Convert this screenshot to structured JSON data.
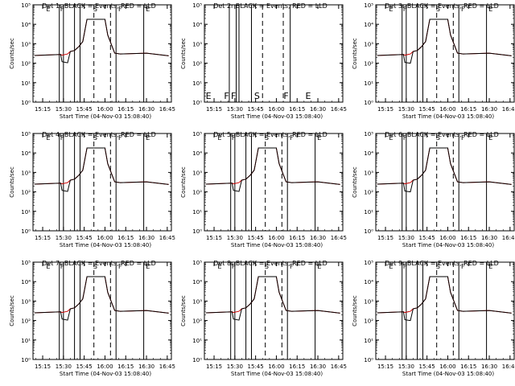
{
  "figure": {
    "colors": {
      "events": "#000000",
      "lld": "#cc0000",
      "background": "#ffffff"
    },
    "xlabel": "Start Time (04-Nov-03 15:08:40)",
    "ylabel": "Counts/sec",
    "x_ticks": [
      "15:15",
      "15:30",
      "15:45",
      "16:00",
      "16:15",
      "16:30",
      "16:45"
    ],
    "y_ticks": [
      "10⁰",
      "10¹",
      "10²",
      "10³",
      "10⁴",
      "10⁵"
    ]
  },
  "chart_data": [
    {
      "type": "line",
      "title": "Det 1r BLACK = Events, RED = LLD",
      "xlabel": "Start Time (04-Nov-03 15:08:40)",
      "ylabel": "Counts/sec",
      "xlim": [
        "15:08",
        "16:48"
      ],
      "ylim": [
        1,
        100000
      ],
      "yscale": "log",
      "series": [
        {
          "name": "Events",
          "color": "#000000",
          "x": [
            "15:09",
            "15:28",
            "15:29",
            "15:33",
            "15:35",
            "15:38",
            "15:41",
            "15:44",
            "15:47",
            "16:00",
            "16:02",
            "16:07",
            "16:11",
            "16:30",
            "16:46"
          ],
          "y": [
            250,
            280,
            120,
            105,
            400,
            450,
            700,
            1300,
            18000,
            18000,
            2800,
            330,
            300,
            330,
            240
          ]
        },
        {
          "name": "LLD",
          "color": "#cc0000",
          "x": [
            "15:09",
            "15:28",
            "15:29",
            "15:33",
            "15:35",
            "15:38",
            "15:41",
            "15:44",
            "15:47",
            "16:00",
            "16:02",
            "16:07",
            "16:11",
            "16:30",
            "16:46"
          ],
          "y": [
            250,
            280,
            260,
            300,
            400,
            450,
            700,
            1300,
            18000,
            18000,
            2800,
            330,
            300,
            330,
            240
          ]
        }
      ],
      "vlines_solid": [
        "15:27",
        "15:30",
        "15:38",
        "15:42",
        "16:08",
        "16:28"
      ],
      "vlines_dashed": [
        "15:52",
        "16:04"
      ],
      "annotations": [
        "E",
        "F",
        "S",
        "F",
        "E"
      ]
    },
    {
      "type": "line",
      "title": "Det 2r BLACK = Events, RED = LLD",
      "xlabel": "Start Time (04-Nov-03 15:08:40)",
      "ylabel": "Counts/sec",
      "xlim": [
        "15:08",
        "16:48"
      ],
      "ylim": [
        1,
        100000
      ],
      "yscale": "log",
      "series": [],
      "vlines_solid": [
        "15:26",
        "15:31",
        "15:33",
        "15:42",
        "16:10"
      ],
      "vlines_dashed": [
        "15:50",
        "16:05"
      ],
      "annotations": [
        "E",
        "F",
        "F",
        "S",
        "F",
        "E"
      ]
    },
    {
      "type": "line",
      "title": "Det 3r BLACK = Events, RED = LLD",
      "xlabel": "Start Time (04-Nov-03 15:08:40)",
      "ylabel": "Counts/sec",
      "xlim": [
        "15:08",
        "16:48"
      ],
      "ylim": [
        1,
        100000
      ],
      "yscale": "log",
      "series": [
        {
          "name": "Events",
          "color": "#000000",
          "x": [
            "15:09",
            "15:28",
            "15:29",
            "15:33",
            "15:35",
            "15:38",
            "15:41",
            "15:44",
            "15:47",
            "16:00",
            "16:02",
            "16:07",
            "16:11",
            "16:30",
            "16:46"
          ],
          "y": [
            250,
            280,
            110,
            100,
            400,
            450,
            700,
            1300,
            18000,
            18000,
            2800,
            330,
            300,
            330,
            240
          ]
        },
        {
          "name": "LLD",
          "color": "#cc0000",
          "x": [
            "15:09",
            "15:28",
            "15:29",
            "15:33",
            "15:35",
            "15:38",
            "15:41",
            "15:44",
            "15:47",
            "16:00",
            "16:02",
            "16:07",
            "16:11",
            "16:30",
            "16:46"
          ],
          "y": [
            250,
            280,
            260,
            300,
            400,
            450,
            700,
            1300,
            18000,
            18000,
            2800,
            330,
            300,
            330,
            240
          ]
        }
      ],
      "vlines_solid": [
        "15:27",
        "15:30",
        "15:38",
        "15:42",
        "16:08",
        "16:28"
      ],
      "vlines_dashed": [
        "15:52",
        "16:04"
      ],
      "annotations": [
        "E",
        "F",
        "S",
        "F",
        "E"
      ]
    },
    {
      "type": "line",
      "title": "Det 4r BLACK = Events, RED = LLD",
      "xlabel": "Start Time (04-Nov-03 15:08:40)",
      "ylabel": "Counts/sec",
      "xlim": [
        "15:08",
        "16:48"
      ],
      "ylim": [
        1,
        100000
      ],
      "yscale": "log",
      "series": [
        {
          "name": "Events",
          "color": "#000000",
          "x": [
            "15:09",
            "15:28",
            "15:29",
            "15:33",
            "15:35",
            "15:38",
            "15:41",
            "15:44",
            "15:47",
            "16:00",
            "16:02",
            "16:07",
            "16:11",
            "16:30",
            "16:46"
          ],
          "y": [
            250,
            280,
            120,
            105,
            400,
            450,
            700,
            1300,
            18000,
            18000,
            2800,
            330,
            300,
            330,
            240
          ]
        },
        {
          "name": "LLD",
          "color": "#cc0000",
          "x": [
            "15:09",
            "15:28",
            "15:29",
            "15:33",
            "15:35",
            "15:38",
            "15:41",
            "15:44",
            "15:47",
            "16:00",
            "16:02",
            "16:07",
            "16:11",
            "16:30",
            "16:46"
          ],
          "y": [
            250,
            280,
            260,
            300,
            400,
            450,
            700,
            1300,
            18000,
            18000,
            2800,
            330,
            300,
            330,
            240
          ]
        }
      ],
      "vlines_solid": [
        "15:27",
        "15:30",
        "15:38",
        "15:42",
        "16:08",
        "16:28"
      ],
      "vlines_dashed": [
        "15:52",
        "16:04"
      ],
      "annotations": [
        "E",
        "F",
        "S",
        "F",
        "E"
      ]
    },
    {
      "type": "line",
      "title": "Det 5r BLACK = Events, RED = LLD",
      "xlabel": "Start Time (04-Nov-03 15:08:40)",
      "ylabel": "Counts/sec",
      "xlim": [
        "15:08",
        "16:48"
      ],
      "ylim": [
        1,
        100000
      ],
      "yscale": "log",
      "series": [
        {
          "name": "Events",
          "color": "#000000",
          "x": [
            "15:09",
            "15:28",
            "15:29",
            "15:33",
            "15:35",
            "15:38",
            "15:41",
            "15:44",
            "15:47",
            "16:00",
            "16:02",
            "16:07",
            "16:11",
            "16:30",
            "16:46"
          ],
          "y": [
            250,
            280,
            120,
            105,
            400,
            450,
            700,
            1300,
            18000,
            18000,
            2800,
            330,
            300,
            330,
            240
          ]
        },
        {
          "name": "LLD",
          "color": "#cc0000",
          "x": [
            "15:09",
            "15:28",
            "15:29",
            "15:33",
            "15:35",
            "15:38",
            "15:41",
            "15:44",
            "15:47",
            "16:00",
            "16:02",
            "16:07",
            "16:11",
            "16:30",
            "16:46"
          ],
          "y": [
            250,
            280,
            260,
            300,
            400,
            450,
            700,
            1300,
            18000,
            18000,
            2800,
            330,
            300,
            330,
            240
          ]
        }
      ],
      "vlines_solid": [
        "15:27",
        "15:30",
        "15:38",
        "15:42",
        "16:08",
        "16:28"
      ],
      "vlines_dashed": [
        "15:52",
        "16:04"
      ],
      "annotations": [
        "E",
        "F",
        "S",
        "F",
        "E"
      ]
    },
    {
      "type": "line",
      "title": "Det 6r BLACK = Events, RED = LLD",
      "xlabel": "Start Time (04-Nov-03 15:08:40)",
      "ylabel": "Counts/sec",
      "xlim": [
        "15:08",
        "16:48"
      ],
      "ylim": [
        1,
        100000
      ],
      "yscale": "log",
      "series": [
        {
          "name": "Events",
          "color": "#000000",
          "x": [
            "15:09",
            "15:28",
            "15:29",
            "15:33",
            "15:35",
            "15:38",
            "15:41",
            "15:44",
            "15:47",
            "16:00",
            "16:02",
            "16:07",
            "16:11",
            "16:30",
            "16:46"
          ],
          "y": [
            250,
            280,
            110,
            100,
            400,
            450,
            700,
            1300,
            18000,
            18000,
            2800,
            330,
            300,
            330,
            240
          ]
        },
        {
          "name": "LLD",
          "color": "#cc0000",
          "x": [
            "15:09",
            "15:28",
            "15:29",
            "15:33",
            "15:35",
            "15:38",
            "15:41",
            "15:44",
            "15:47",
            "16:00",
            "16:02",
            "16:07",
            "16:11",
            "16:30",
            "16:46"
          ],
          "y": [
            250,
            280,
            260,
            300,
            400,
            450,
            700,
            1300,
            18000,
            18000,
            2800,
            330,
            300,
            330,
            240
          ]
        }
      ],
      "vlines_solid": [
        "15:27",
        "15:30",
        "15:38",
        "15:42",
        "16:08",
        "16:28"
      ],
      "vlines_dashed": [
        "15:52",
        "16:04"
      ],
      "annotations": [
        "E",
        "F",
        "S",
        "F",
        "E"
      ]
    },
    {
      "type": "line",
      "title": "Det 7r BLACK = Events, RED = LLD",
      "xlabel": "Start Time (04-Nov-03 15:08:40)",
      "ylabel": "Counts/sec",
      "xlim": [
        "15:08",
        "16:48"
      ],
      "ylim": [
        1,
        100000
      ],
      "yscale": "log",
      "series": [
        {
          "name": "Events",
          "color": "#000000",
          "x": [
            "15:09",
            "15:28",
            "15:29",
            "15:33",
            "15:35",
            "15:38",
            "15:41",
            "15:44",
            "15:47",
            "16:00",
            "16:02",
            "16:07",
            "16:11",
            "16:30",
            "16:46"
          ],
          "y": [
            250,
            280,
            120,
            105,
            400,
            450,
            700,
            1300,
            18000,
            18000,
            2800,
            330,
            300,
            330,
            240
          ]
        },
        {
          "name": "LLD",
          "color": "#cc0000",
          "x": [
            "15:09",
            "15:28",
            "15:29",
            "15:33",
            "15:35",
            "15:38",
            "15:41",
            "15:44",
            "15:47",
            "16:00",
            "16:02",
            "16:07",
            "16:11",
            "16:30",
            "16:46"
          ],
          "y": [
            250,
            280,
            260,
            300,
            400,
            450,
            700,
            1300,
            18000,
            18000,
            2800,
            330,
            300,
            330,
            240
          ]
        }
      ],
      "vlines_solid": [
        "15:27",
        "15:30",
        "15:38",
        "15:42",
        "16:08",
        "16:28"
      ],
      "vlines_dashed": [
        "15:52",
        "16:04"
      ],
      "annotations": [
        "E",
        "F",
        "S",
        "F",
        "E"
      ]
    },
    {
      "type": "line",
      "title": "Det 8r BLACK = Events, RED = LLD",
      "xlabel": "Start Time (04-Nov-03 15:08:40)",
      "ylabel": "Counts/sec",
      "xlim": [
        "15:08",
        "16:48"
      ],
      "ylim": [
        1,
        100000
      ],
      "yscale": "log",
      "series": [
        {
          "name": "Events",
          "color": "#000000",
          "x": [
            "15:09",
            "15:28",
            "15:29",
            "15:33",
            "15:35",
            "15:38",
            "15:41",
            "15:44",
            "15:47",
            "16:00",
            "16:02",
            "16:07",
            "16:11",
            "16:30",
            "16:46"
          ],
          "y": [
            250,
            280,
            120,
            105,
            400,
            450,
            700,
            1300,
            18000,
            18000,
            2800,
            330,
            300,
            330,
            240
          ]
        },
        {
          "name": "LLD",
          "color": "#cc0000",
          "x": [
            "15:09",
            "15:28",
            "15:29",
            "15:33",
            "15:35",
            "15:38",
            "15:41",
            "15:44",
            "15:47",
            "16:00",
            "16:02",
            "16:07",
            "16:11",
            "16:30",
            "16:46"
          ],
          "y": [
            250,
            280,
            260,
            300,
            400,
            450,
            700,
            1300,
            18000,
            18000,
            2800,
            330,
            300,
            330,
            240
          ]
        }
      ],
      "vlines_solid": [
        "15:27",
        "15:30",
        "15:38",
        "15:42",
        "16:08",
        "16:28"
      ],
      "vlines_dashed": [
        "15:52",
        "16:04"
      ],
      "annotations": [
        "E",
        "F",
        "S",
        "F",
        "E"
      ]
    },
    {
      "type": "line",
      "title": "Det 9r BLACK = Events, RED = LLD",
      "xlabel": "Start Time (04-Nov-03 15:08:40)",
      "ylabel": "Counts/sec",
      "xlim": [
        "15:08",
        "16:48"
      ],
      "ylim": [
        1,
        100000
      ],
      "yscale": "log",
      "series": [
        {
          "name": "Events",
          "color": "#000000",
          "x": [
            "15:09",
            "15:28",
            "15:29",
            "15:33",
            "15:35",
            "15:38",
            "15:41",
            "15:44",
            "15:47",
            "16:00",
            "16:02",
            "16:07",
            "16:11",
            "16:30",
            "16:46"
          ],
          "y": [
            250,
            280,
            110,
            100,
            400,
            450,
            700,
            1300,
            18000,
            18000,
            2800,
            330,
            300,
            330,
            240
          ]
        },
        {
          "name": "LLD",
          "color": "#cc0000",
          "x": [
            "15:09",
            "15:28",
            "15:29",
            "15:33",
            "15:35",
            "15:38",
            "15:41",
            "15:44",
            "15:47",
            "16:00",
            "16:02",
            "16:07",
            "16:11",
            "16:30",
            "16:46"
          ],
          "y": [
            250,
            280,
            260,
            300,
            400,
            450,
            700,
            1300,
            18000,
            18000,
            2800,
            330,
            300,
            330,
            240
          ]
        }
      ],
      "vlines_solid": [
        "15:27",
        "15:30",
        "15:38",
        "15:42",
        "16:08",
        "16:28"
      ],
      "vlines_dashed": [
        "15:52",
        "16:04"
      ],
      "annotations": [
        "E",
        "F",
        "S",
        "F",
        "E"
      ]
    }
  ]
}
